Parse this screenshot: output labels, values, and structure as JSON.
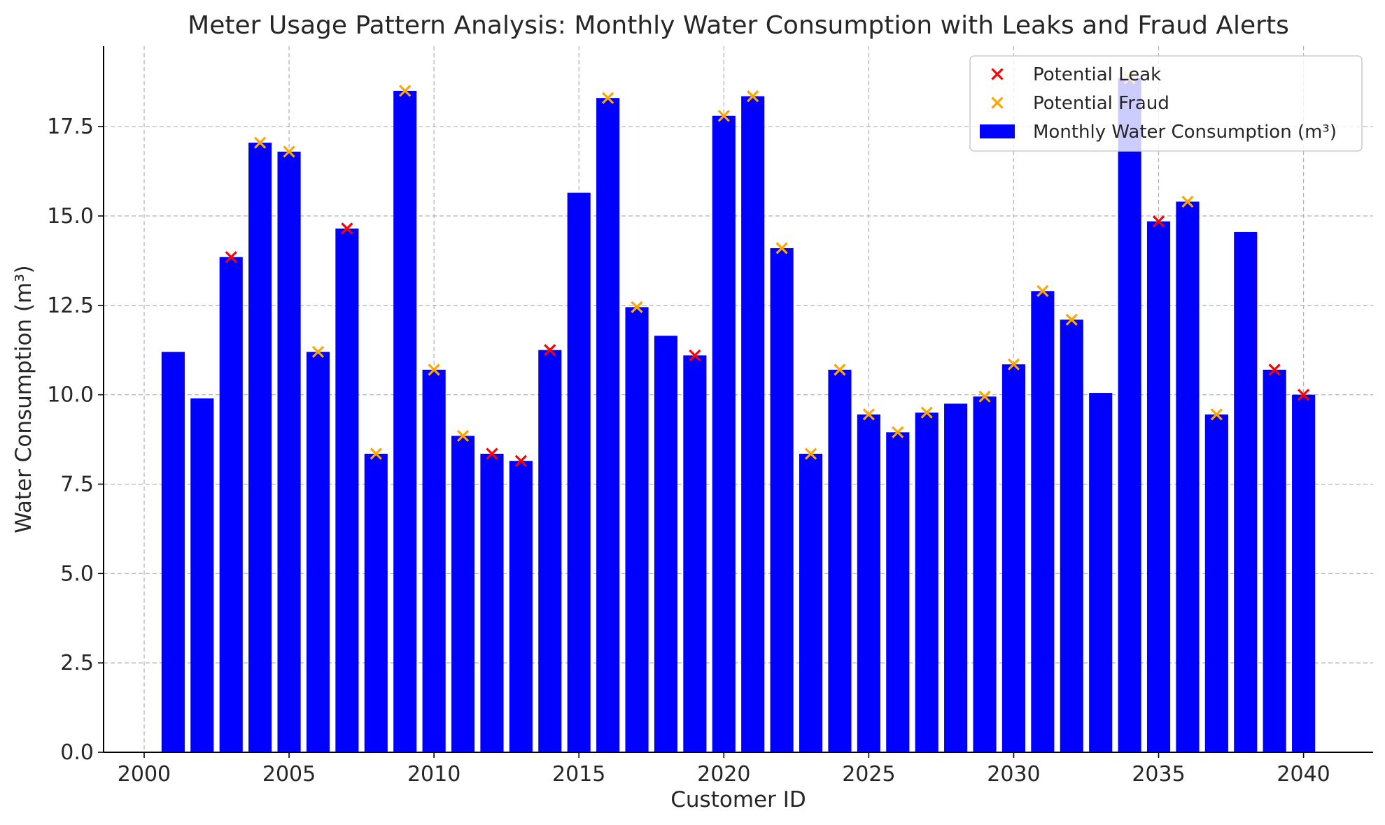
{
  "chart_data": {
    "type": "bar",
    "title": "Meter Usage Pattern Analysis: Monthly Water Consumption with Leaks and Fraud Alerts",
    "xlabel": "Customer ID",
    "ylabel": "Water Consumption (m³)",
    "xlim": [
      1998.6,
      2042.4
    ],
    "ylim": [
      0,
      19.75
    ],
    "x_ticks": [
      2000,
      2005,
      2010,
      2015,
      2020,
      2025,
      2030,
      2035,
      2040
    ],
    "x_tick_labels": [
      "2000",
      "2005",
      "2010",
      "2015",
      "2020",
      "2025",
      "2030",
      "2035",
      "2040"
    ],
    "y_ticks": [
      0,
      2.5,
      5,
      7.5,
      10,
      12.5,
      15,
      17.5
    ],
    "y_tick_labels": [
      "0.0",
      "2.5",
      "5.0",
      "7.5",
      "10.0",
      "12.5",
      "15.0",
      "17.5"
    ],
    "grid": true,
    "legend_position": "top-right",
    "series": [
      {
        "name": "Monthly Water Consumption (m³)",
        "kind": "bar",
        "color": "#0000ff",
        "x": [
          2001,
          2002,
          2003,
          2004,
          2005,
          2006,
          2007,
          2008,
          2009,
          2010,
          2011,
          2012,
          2013,
          2014,
          2015,
          2016,
          2017,
          2018,
          2019,
          2020,
          2021,
          2022,
          2023,
          2024,
          2025,
          2026,
          2027,
          2028,
          2029,
          2030,
          2031,
          2032,
          2033,
          2034,
          2035,
          2036,
          2037,
          2038,
          2039,
          2040
        ],
        "values": [
          11.2,
          9.9,
          13.85,
          17.05,
          16.8,
          11.2,
          14.65,
          8.35,
          18.5,
          10.7,
          8.85,
          8.35,
          8.15,
          11.25,
          15.65,
          18.3,
          12.45,
          11.65,
          11.1,
          17.8,
          18.35,
          14.1,
          8.35,
          10.7,
          9.45,
          8.95,
          9.5,
          9.75,
          9.95,
          10.85,
          12.9,
          12.1,
          10.05,
          18.85,
          14.85,
          15.4,
          9.45,
          14.55,
          10.7,
          10.0
        ]
      },
      {
        "name": "Potential Leak",
        "kind": "scatter",
        "marker": "x",
        "color": "#ff0000",
        "x": [
          2003,
          2007,
          2012,
          2013,
          2014,
          2019,
          2035,
          2039,
          2040
        ],
        "y": [
          13.85,
          14.65,
          8.35,
          8.15,
          11.25,
          11.1,
          14.85,
          10.7,
          10.0
        ]
      },
      {
        "name": "Potential Fraud",
        "kind": "scatter",
        "marker": "x",
        "color": "#ffa500",
        "x": [
          2004,
          2005,
          2006,
          2008,
          2009,
          2010,
          2011,
          2016,
          2017,
          2020,
          2021,
          2022,
          2023,
          2024,
          2025,
          2026,
          2027,
          2029,
          2030,
          2031,
          2032,
          2034,
          2036,
          2037
        ],
        "y": [
          17.05,
          16.8,
          11.2,
          8.35,
          18.5,
          10.7,
          8.85,
          18.3,
          12.45,
          17.8,
          18.35,
          14.1,
          8.35,
          10.7,
          9.45,
          8.95,
          9.5,
          9.95,
          10.85,
          12.9,
          12.1,
          18.85,
          15.4,
          9.45
        ]
      }
    ],
    "legend": [
      {
        "label": "Potential Leak",
        "marker": "x",
        "color": "#ff0000"
      },
      {
        "label": "Potential Fraud",
        "marker": "x",
        "color": "#ffa500"
      },
      {
        "label": "Monthly Water Consumption (m³)",
        "marker": "bar",
        "color": "#0000ff"
      }
    ]
  }
}
